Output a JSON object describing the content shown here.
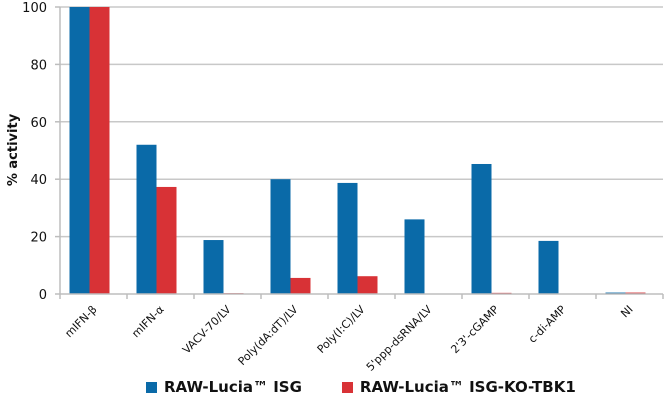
{
  "chart_data": {
    "type": "bar",
    "title": "",
    "xlabel": "",
    "ylabel": "% activity",
    "ylim": [
      0,
      100
    ],
    "yticks": [
      0,
      20,
      40,
      60,
      80,
      100
    ],
    "grid": true,
    "legend_position": "bottom",
    "categories": [
      "mIFN-β",
      "mIFN-α",
      "VACV-70/LV",
      "Poly(dA:dT)/LV",
      "Poly(I:C)/LV",
      "5'ppp-dsRNA/LV",
      "2'3'-cGAMP",
      "c-di-AMP",
      "NI"
    ],
    "series": [
      {
        "name": "RAW-Lucia™ ISG",
        "color": "#0a6aa8",
        "values": [
          100,
          52,
          18.8,
          40,
          38.7,
          26,
          45.3,
          18.5,
          0.5
        ]
      },
      {
        "name": "RAW-Lucia™ ISG-KO-TBK1",
        "color": "#d83236",
        "values": [
          100,
          37.3,
          0.3,
          5.6,
          6.2,
          0,
          0.4,
          0,
          0.5
        ]
      }
    ]
  },
  "legend": {
    "items": [
      {
        "label": "RAW-Lucia™ ISG",
        "color": "#0a6aa8"
      },
      {
        "label": "RAW-Lucia™ ISG-KO-TBK1",
        "color": "#d83236"
      }
    ]
  }
}
